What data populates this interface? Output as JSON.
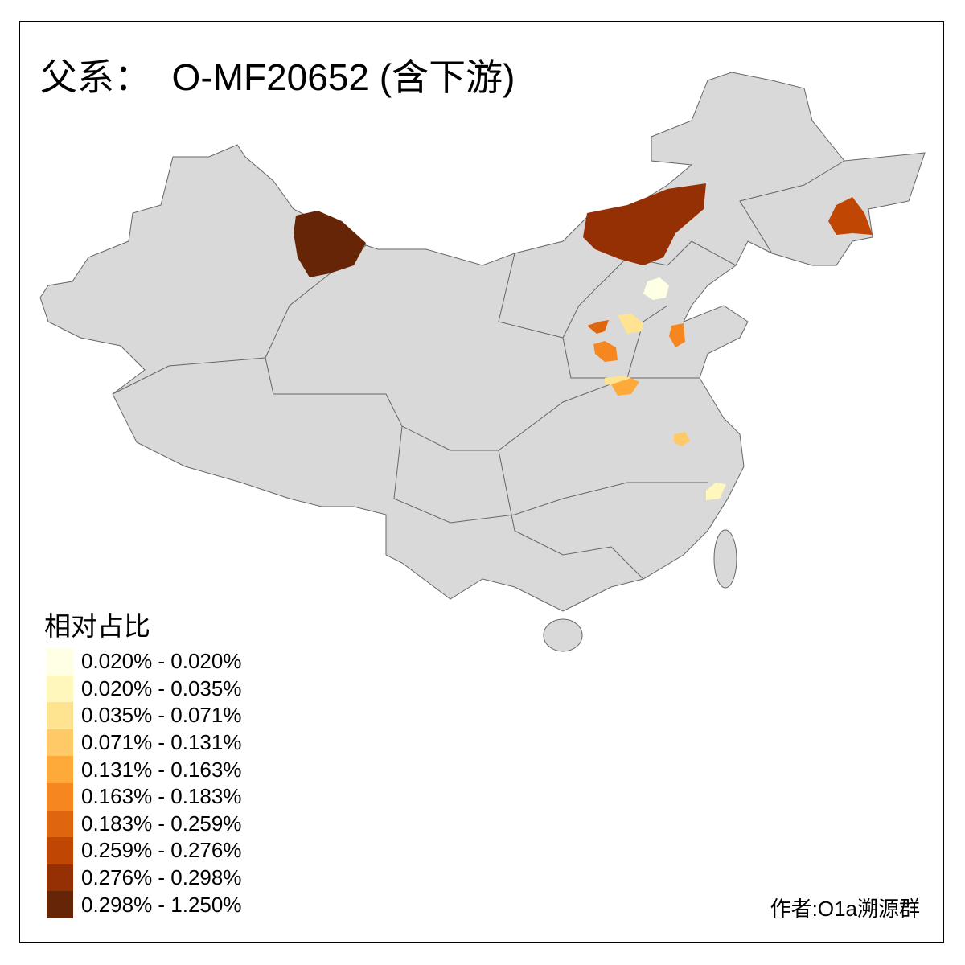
{
  "title": "父系：  O-MF20652 (含下游)",
  "legend": {
    "title": "相对占比",
    "items": [
      {
        "label": "0.020% - 0.020%",
        "color": "#ffffe5"
      },
      {
        "label": "0.020% - 0.035%",
        "color": "#fff7bc"
      },
      {
        "label": "0.035% - 0.071%",
        "color": "#fee391"
      },
      {
        "label": "0.071% - 0.131%",
        "color": "#fec966"
      },
      {
        "label": "0.131% - 0.163%",
        "color": "#fdaa3b"
      },
      {
        "label": "0.163% - 0.183%",
        "color": "#f6861f"
      },
      {
        "label": "0.183% - 0.259%",
        "color": "#e0650f"
      },
      {
        "label": "0.259% - 0.276%",
        "color": "#c04603"
      },
      {
        "label": "0.276% - 0.298%",
        "color": "#952f04"
      },
      {
        "label": "0.298% - 1.250%",
        "color": "#662506"
      }
    ]
  },
  "author": "作者:O1a溯源群",
  "colors": {
    "base_region": "#d9d9d9",
    "border": "#666666"
  }
}
